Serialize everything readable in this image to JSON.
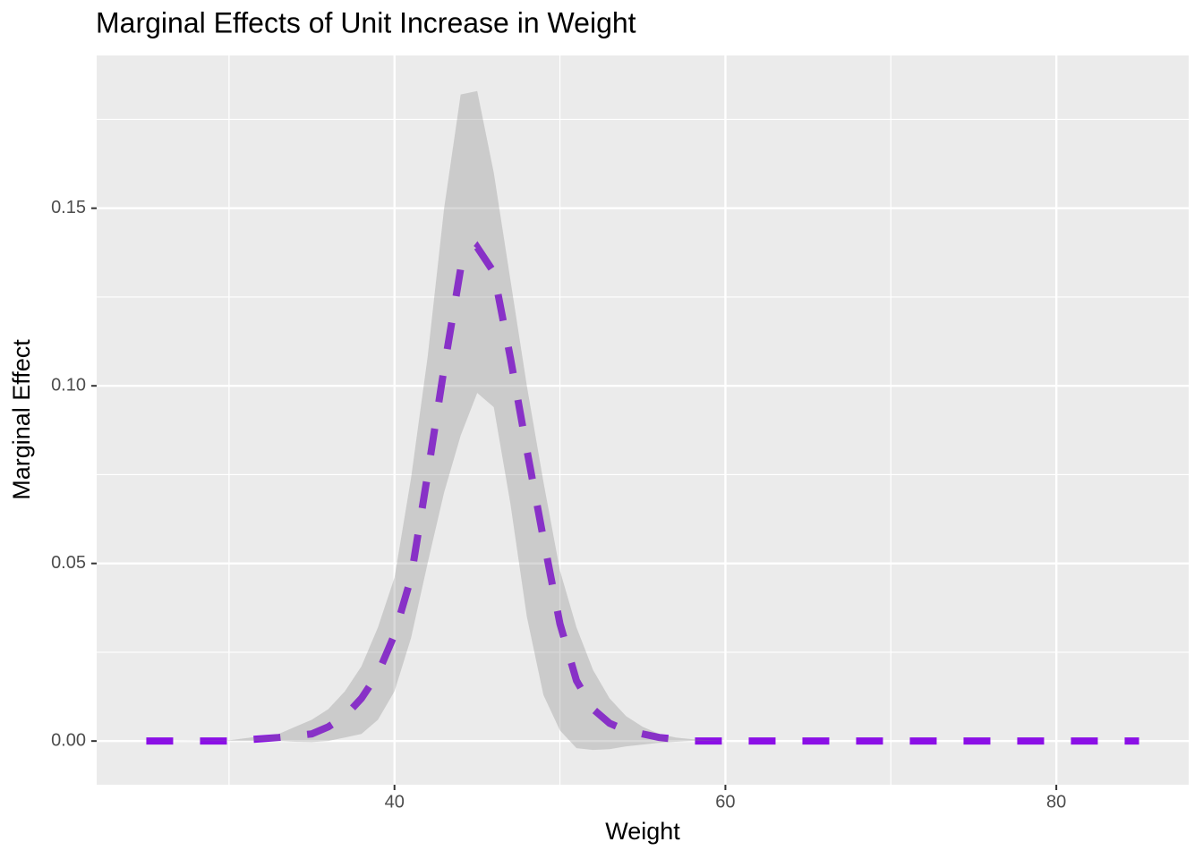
{
  "chart_data": {
    "type": "line",
    "title": "Marginal Effects of Unit Increase in Weight",
    "x_label": "Weight",
    "y_label": "Marginal Effect",
    "x": [
      25,
      30,
      33,
      34,
      35,
      36,
      37,
      38,
      39,
      40,
      41,
      42,
      43,
      44,
      45,
      46,
      47,
      48,
      49,
      50,
      51,
      52,
      53,
      54,
      55,
      56,
      57,
      58,
      60,
      65,
      70,
      75,
      80,
      85
    ],
    "values": [
      0,
      0,
      0.001,
      0.0015,
      0.002,
      0.004,
      0.007,
      0.012,
      0.019,
      0.03,
      0.046,
      0.075,
      0.105,
      0.133,
      0.139,
      0.132,
      0.108,
      0.082,
      0.057,
      0.033,
      0.017,
      0.009,
      0.005,
      0.003,
      0.002,
      0.001,
      0.0005,
      0,
      0,
      0,
      0,
      0,
      0,
      0
    ],
    "color": "#8b0fe6",
    "ribbon": {
      "lower": [
        0,
        0,
        0,
        -0.0002,
        -0.0003,
        0,
        0.001,
        0.002,
        0.006,
        0.014,
        0.029,
        0.05,
        0.07,
        0.086,
        0.098,
        0.094,
        0.067,
        0.035,
        0.013,
        0.003,
        -0.002,
        -0.0025,
        -0.0023,
        -0.0015,
        -0.001,
        -0.0005,
        -0.0002,
        0,
        0,
        0,
        0,
        0,
        0,
        0
      ],
      "upper": [
        0,
        0.0002,
        0.002,
        0.004,
        0.006,
        0.009,
        0.014,
        0.021,
        0.032,
        0.046,
        0.074,
        0.108,
        0.15,
        0.182,
        0.183,
        0.16,
        0.13,
        0.1,
        0.073,
        0.048,
        0.032,
        0.02,
        0.012,
        0.007,
        0.004,
        0.002,
        0.001,
        0.0005,
        0,
        0,
        0,
        0,
        0,
        0
      ],
      "color": "grey",
      "opacity": 0.3
    },
    "xlim": [
      22,
      88
    ],
    "ylim": [
      -0.0123,
      0.193
    ],
    "xticks": [
      40,
      60,
      80
    ],
    "yticks": [
      {
        "value": 0,
        "label": "0.00"
      },
      {
        "value": 0.05,
        "label": "0.05"
      },
      {
        "value": 0.1,
        "label": "0.10"
      },
      {
        "value": 0.15,
        "label": "0.15"
      }
    ],
    "grid": true
  }
}
